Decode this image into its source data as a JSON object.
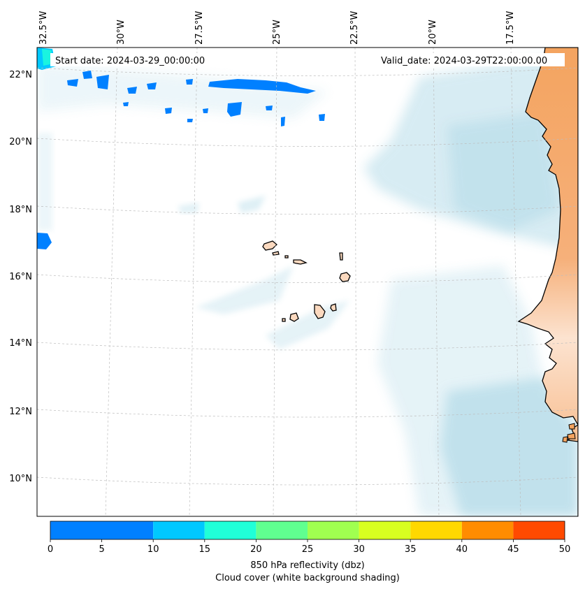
{
  "header": {
    "start_date": "Start date: 2024-03-29_00:00:00",
    "valid_date": "Valid_date: 2024-03-29T22:00:00.00"
  },
  "axes": {
    "lon_labels": [
      "32.5°W",
      "30°W",
      "27.5°W",
      "25°W",
      "22.5°W",
      "20°W",
      "17.5°W"
    ],
    "lat_labels": [
      "22°N",
      "20°N",
      "18°N",
      "16°N",
      "14°N",
      "12°N",
      "10°N"
    ]
  },
  "colorbar": {
    "title": "850 hPa reflectivity (dbz)",
    "subtitle": "Cloud cover (white background shading)",
    "ticks": [
      "0",
      "5",
      "10",
      "15",
      "20",
      "25",
      "30",
      "35",
      "40",
      "45",
      "50"
    ],
    "colors": [
      "#0080ff",
      "#00c8ff",
      "#20ffd8",
      "#60ff90",
      "#a0ff50",
      "#d8ff20",
      "#ffd800",
      "#ff8c00",
      "#ff4a00"
    ]
  },
  "colors": {
    "land_warm": "#f4a460",
    "land_light": "#fbd9bf",
    "cloud": "#add8e6",
    "echo": "#0080ff"
  }
}
